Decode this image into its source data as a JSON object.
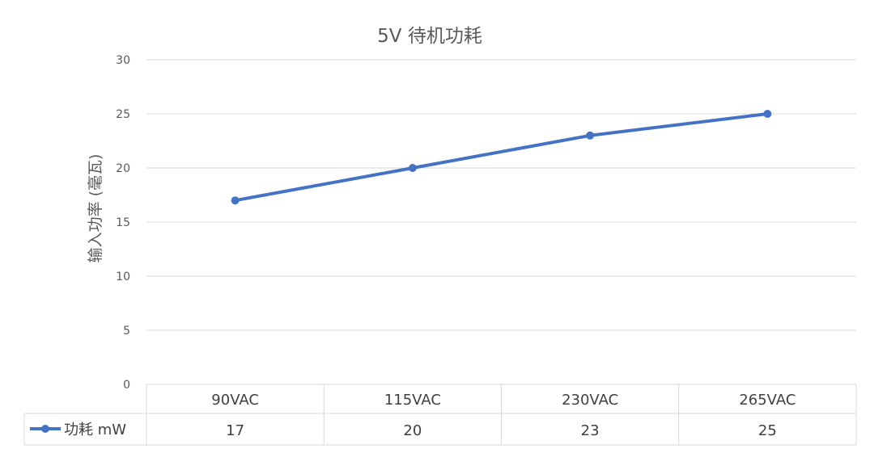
{
  "chart_data": {
    "type": "line",
    "title": "5V 待机功耗",
    "ylabel": "输入功率 (毫瓦)",
    "xlabel": "",
    "ylim": [
      0,
      30
    ],
    "yticks": [
      0,
      5,
      10,
      15,
      20,
      25,
      30
    ],
    "categories": [
      "90VAC",
      "115VAC",
      "230VAC",
      "265VAC"
    ],
    "series": [
      {
        "name": "功耗 mW",
        "values": [
          17,
          20,
          23,
          25
        ],
        "color": "#4472C4"
      }
    ],
    "grid": true,
    "data_table": true,
    "legend": "data-table-left"
  }
}
